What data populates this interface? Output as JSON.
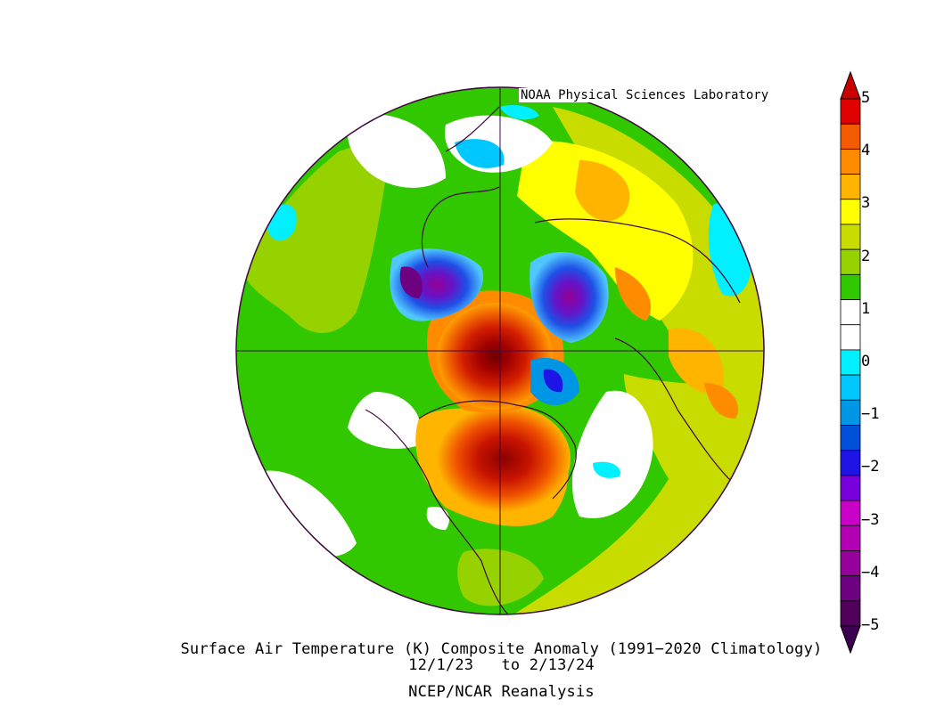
{
  "credit": "NOAA Physical Sciences Laboratory",
  "title": "Surface Air Temperature (K) Composite Anomaly (1991−2020 Climatology)",
  "dates": "12/1/23   to 2/13/24",
  "source": "NCEP/NCAR Reanalysis",
  "map": {
    "projection": "north-polar-stereographic",
    "variable": "Surface Air Temperature anomaly",
    "units": "K"
  },
  "colorbar": {
    "labels": [
      "5",
      "4",
      "3",
      "2",
      "1",
      "0",
      "−1",
      "−2",
      "−3",
      "−4",
      "−5"
    ],
    "colors": [
      "#e00000",
      "#f45a00",
      "#ff8c00",
      "#ffb400",
      "#ffff00",
      "#c8dc00",
      "#96d200",
      "#32c800",
      "#ffffff",
      "#ffffff",
      "#00f0ff",
      "#00c8ff",
      "#0096e6",
      "#0050dc",
      "#1e14e6",
      "#7800dc",
      "#c800c8",
      "#b400b4",
      "#96009b",
      "#6e0082",
      "#50005a"
    ],
    "over_color": "#c80000",
    "under_color": "#3c0050"
  }
}
